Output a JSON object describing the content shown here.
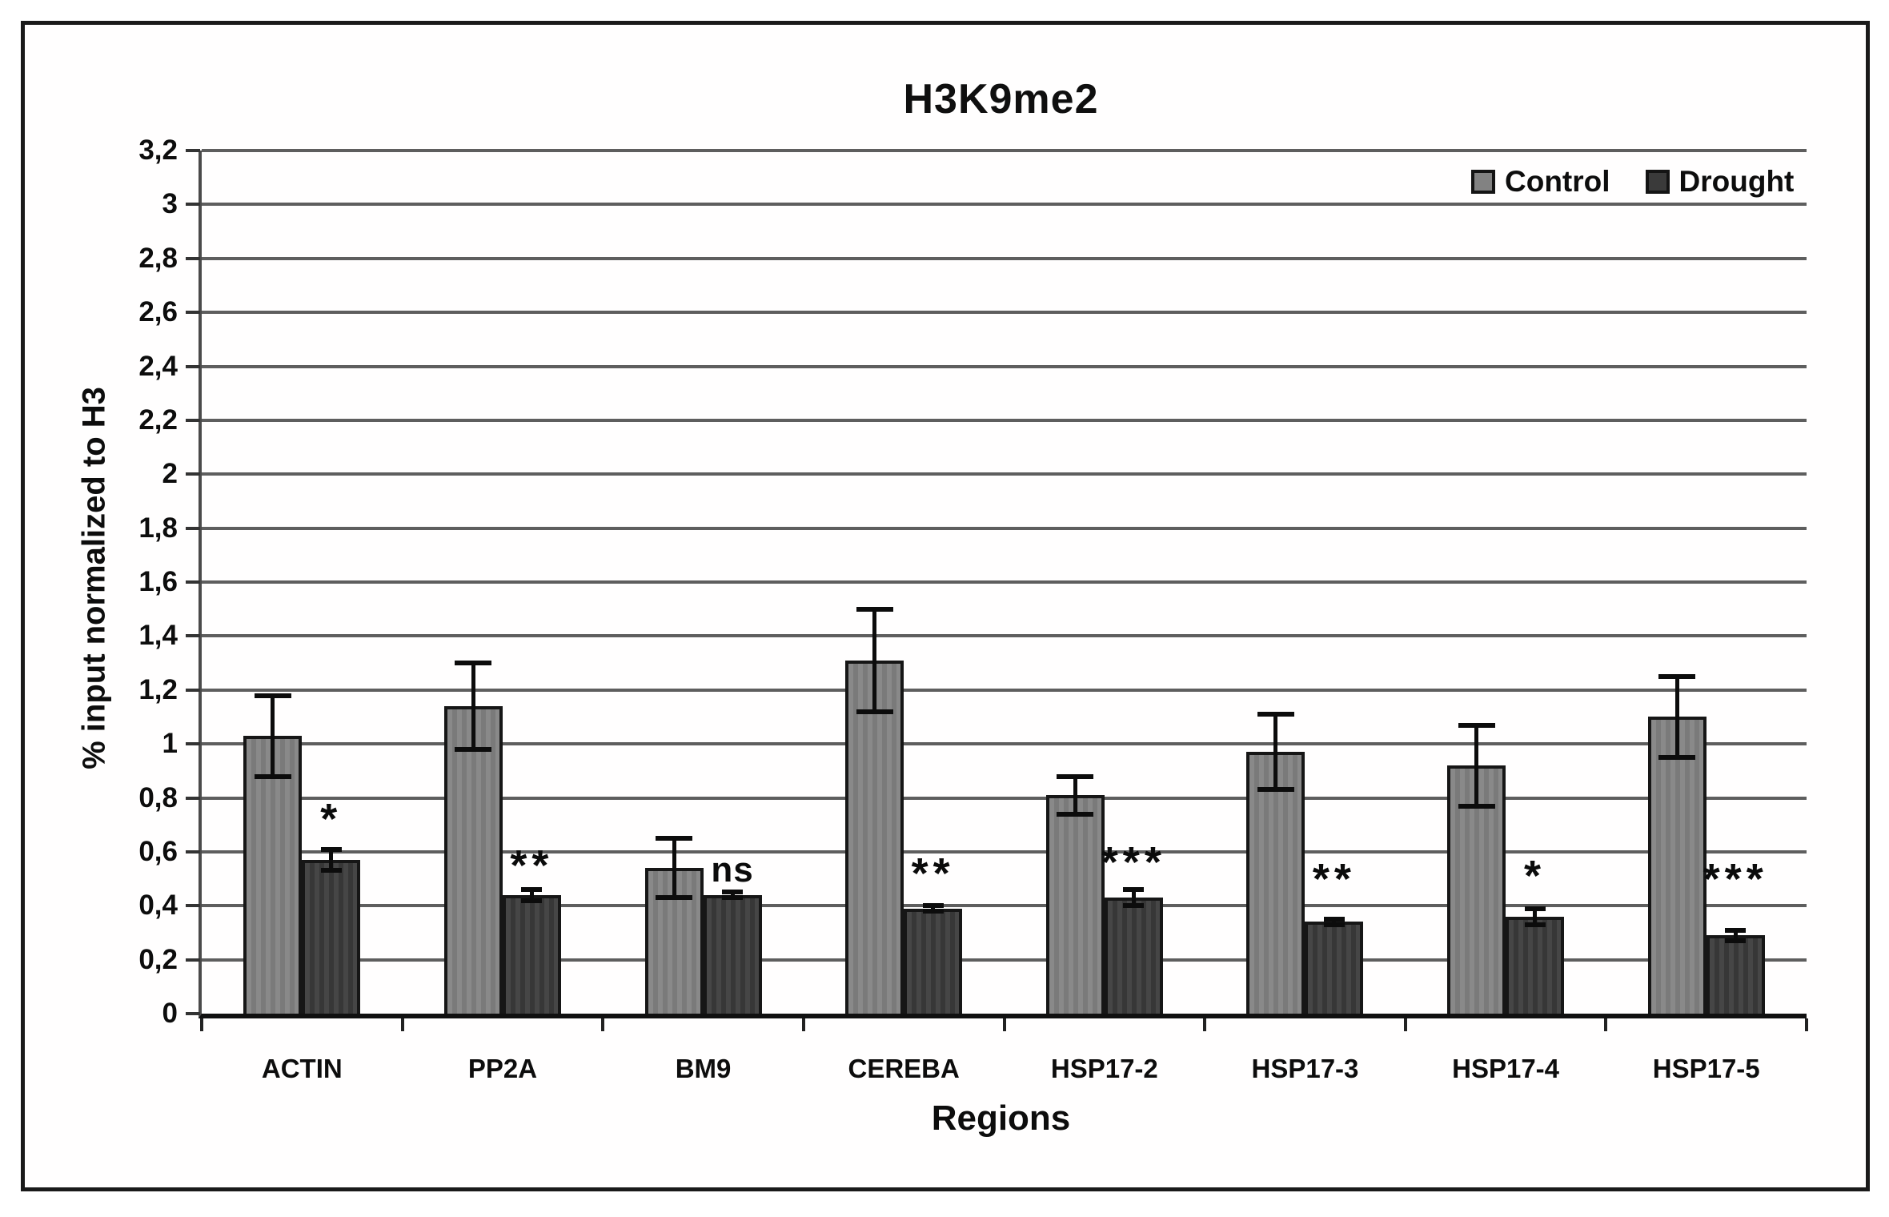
{
  "figure": {
    "title": "H3K9me2",
    "y_axis_title": "% input normalized to H3",
    "x_axis_title": "Regions"
  },
  "chart_data": {
    "type": "bar",
    "title": "H3K9me2",
    "xlabel": "Regions",
    "ylabel": "% input normalized to H3",
    "ylim": [
      0,
      3.2
    ],
    "grid": true,
    "legend_position": "top-right",
    "decimal_separator": ",",
    "yticks": [
      {
        "label": "3,2",
        "value": 3.2
      },
      {
        "label": "3",
        "value": 3.0
      },
      {
        "label": "2,8",
        "value": 2.8
      },
      {
        "label": "2,6",
        "value": 2.6
      },
      {
        "label": "2,4",
        "value": 2.4
      },
      {
        "label": "2,2",
        "value": 2.2
      },
      {
        "label": "2",
        "value": 2.0
      },
      {
        "label": "1,8",
        "value": 1.8
      },
      {
        "label": "1,6",
        "value": 1.6
      },
      {
        "label": "1,4",
        "value": 1.4
      },
      {
        "label": "1,2",
        "value": 1.2
      },
      {
        "label": "1",
        "value": 1.0
      },
      {
        "label": "0,8",
        "value": 0.8
      },
      {
        "label": "0,6",
        "value": 0.6
      },
      {
        "label": "0,4",
        "value": 0.4
      },
      {
        "label": "0,2",
        "value": 0.2
      },
      {
        "label": "0",
        "value": 0.0
      }
    ],
    "categories": [
      "ACTIN",
      "PP2A",
      "BM9",
      "CEREBA",
      "HSP17-2",
      "HSP17-3",
      "HSP17-4",
      "HSP17-5"
    ],
    "series": [
      {
        "name": "Control",
        "color": "#828282",
        "values": [
          1.03,
          1.14,
          0.54,
          1.31,
          0.81,
          0.97,
          0.92,
          1.1
        ],
        "errors": [
          0.15,
          0.16,
          0.11,
          0.19,
          0.07,
          0.14,
          0.15,
          0.15
        ]
      },
      {
        "name": "Drought",
        "color": "#3a3a3a",
        "values": [
          0.57,
          0.44,
          0.44,
          0.39,
          0.43,
          0.34,
          0.36,
          0.29
        ],
        "errors": [
          0.04,
          0.02,
          0.01,
          0.01,
          0.03,
          0.01,
          0.03,
          0.02
        ]
      }
    ],
    "significance": [
      {
        "category": "ACTIN",
        "label": "*",
        "y": 0.72
      },
      {
        "category": "PP2A",
        "label": "**",
        "y": 0.55
      },
      {
        "category": "BM9",
        "label": "ns",
        "y": 0.53
      },
      {
        "category": "CEREBA",
        "label": "**",
        "y": 0.52
      },
      {
        "category": "HSP17-2",
        "label": "***",
        "y": 0.56
      },
      {
        "category": "HSP17-3",
        "label": "**",
        "y": 0.5
      },
      {
        "category": "HSP17-4",
        "label": "*",
        "y": 0.51
      },
      {
        "category": "HSP17-5",
        "label": "***",
        "y": 0.5
      }
    ]
  }
}
